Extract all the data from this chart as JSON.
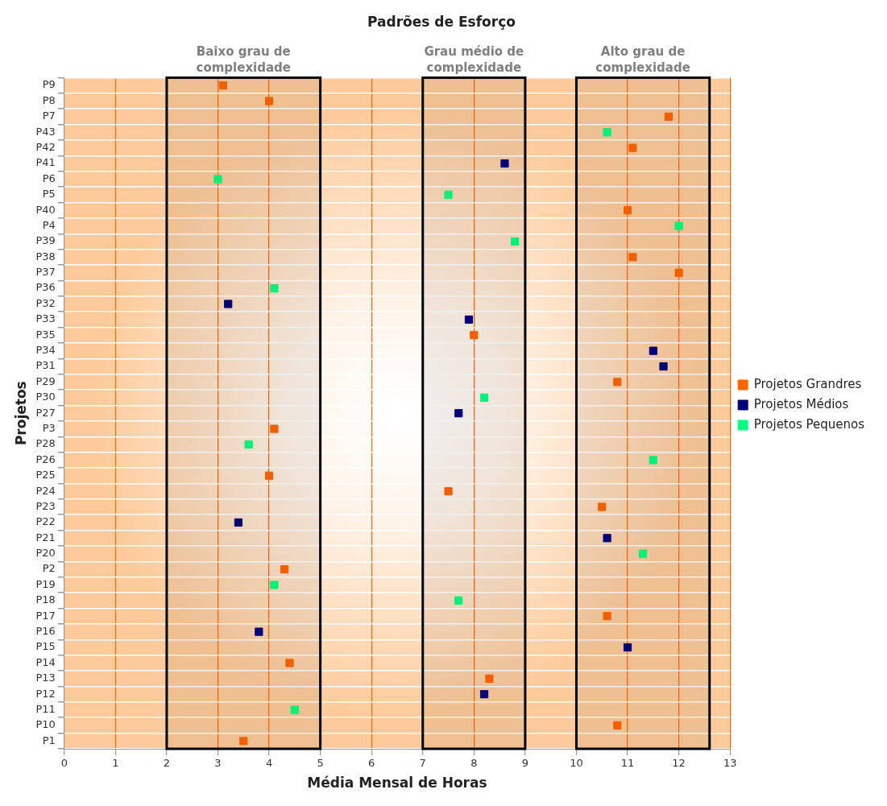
{
  "chart_data": {
    "type": "scatter",
    "orientation": "horizontal",
    "title": "Padrões de Esforço",
    "xlabel": "Média Mensal de Horas",
    "ylabel": "Projetos",
    "categories": [
      "P9",
      "P8",
      "P7",
      "P43",
      "P42",
      "P41",
      "P6",
      "P5",
      "P40",
      "P4",
      "P39",
      "P38",
      "P37",
      "P36",
      "P32",
      "P33",
      "P35",
      "P34",
      "P31",
      "P29",
      "P30",
      "P27",
      "P3",
      "P28",
      "P26",
      "P25",
      "P24",
      "P23",
      "P22",
      "P21",
      "P20",
      "P2",
      "P19",
      "P18",
      "P17",
      "P16",
      "P15",
      "P14",
      "P13",
      "P12",
      "P11",
      "P10",
      "P1"
    ],
    "series": [
      {
        "name": "Projetos Grandres",
        "color": "#ff6600",
        "values": [
          3.1,
          4.0,
          11.8,
          null,
          11.1,
          null,
          null,
          null,
          11.0,
          null,
          null,
          11.1,
          12.0,
          null,
          null,
          null,
          8.0,
          null,
          null,
          10.8,
          null,
          null,
          4.1,
          null,
          null,
          4.0,
          7.5,
          10.5,
          null,
          null,
          null,
          4.3,
          null,
          null,
          10.6,
          null,
          null,
          4.4,
          8.3,
          null,
          null,
          10.8,
          3.5
        ]
      },
      {
        "name": "Projetos Médios",
        "color": "#000080",
        "values": [
          null,
          null,
          null,
          null,
          null,
          8.6,
          null,
          null,
          null,
          null,
          null,
          null,
          null,
          null,
          3.2,
          7.9,
          null,
          11.5,
          11.7,
          null,
          null,
          7.7,
          null,
          null,
          null,
          null,
          null,
          null,
          3.4,
          10.6,
          null,
          null,
          null,
          null,
          null,
          3.8,
          11.0,
          null,
          null,
          8.2,
          null,
          null,
          null
        ]
      },
      {
        "name": "Projetos Pequenos",
        "color": "#00ff80",
        "values": [
          null,
          null,
          null,
          10.6,
          null,
          null,
          3.0,
          7.5,
          null,
          12.0,
          8.8,
          null,
          null,
          4.1,
          null,
          null,
          null,
          null,
          null,
          null,
          8.2,
          null,
          null,
          3.6,
          11.5,
          null,
          null,
          null,
          null,
          null,
          11.3,
          null,
          4.1,
          7.7,
          null,
          null,
          null,
          null,
          null,
          null,
          4.5,
          null,
          null
        ]
      }
    ],
    "xlim": [
      0,
      13
    ],
    "xticks": [
      0,
      1,
      2,
      3,
      4,
      5,
      6,
      7,
      8,
      9,
      10,
      11,
      12,
      13
    ],
    "bands": [
      {
        "axis": "x",
        "from": 2,
        "to": 5,
        "label": "Baixo grau de complexidade",
        "color": "#000000"
      },
      {
        "axis": "x",
        "from": 7,
        "to": 9,
        "label": "Grau médio de complexidade",
        "color": "#000000"
      },
      {
        "axis": "x",
        "from": 10,
        "to": 12.6,
        "label": "Alto grau de complexidade",
        "color": "#000000"
      }
    ],
    "grid": true,
    "legend": "right",
    "marker": "square"
  }
}
